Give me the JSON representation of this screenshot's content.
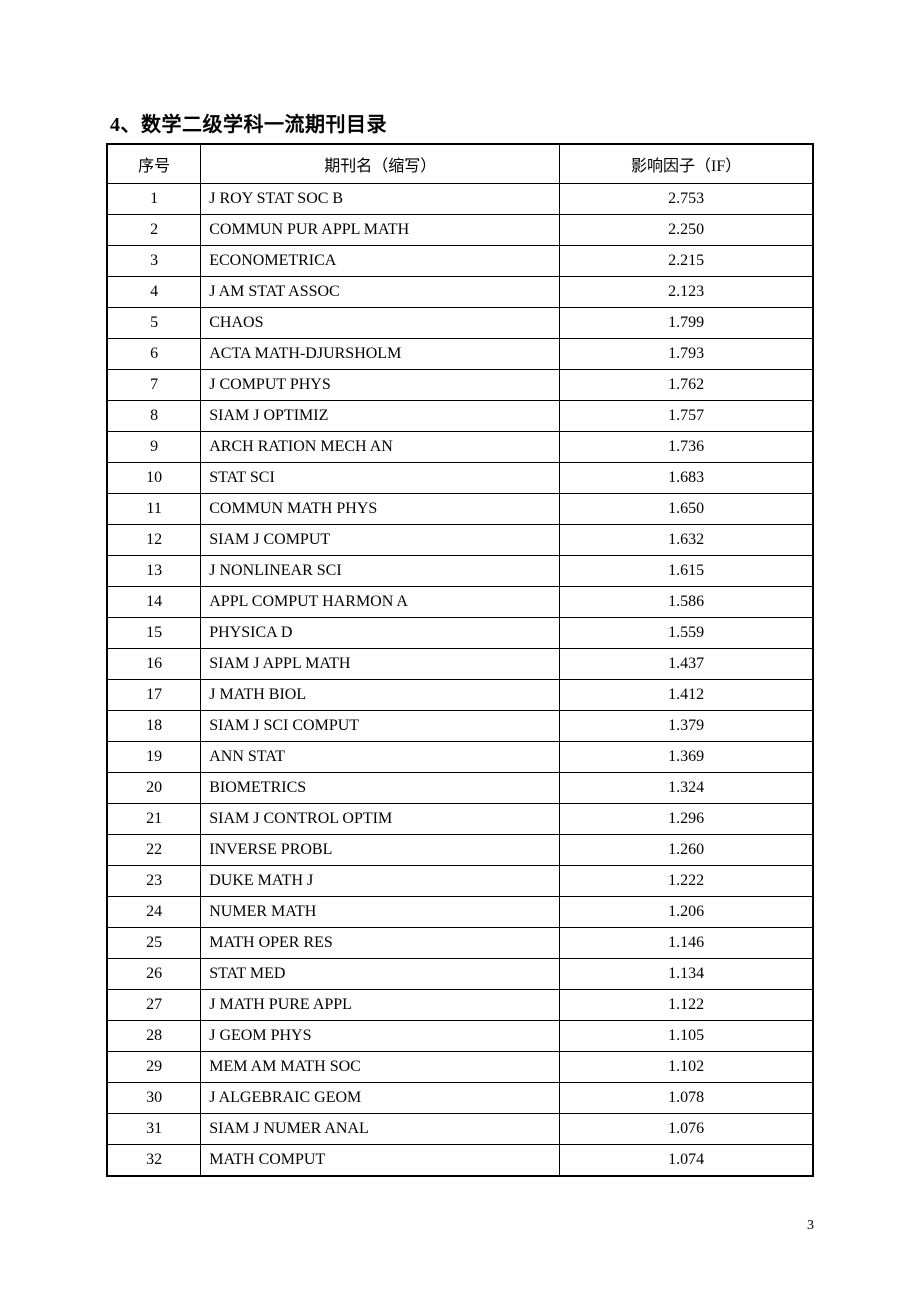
{
  "document": {
    "title": "4、数学二级学科一流期刊目录",
    "page_number": "3",
    "background_color": "#ffffff",
    "text_color": "#000000",
    "border_color": "#000000"
  },
  "table": {
    "columns": {
      "index": "序号",
      "name": "期刊名（缩写）",
      "impact_factor": "影响因子（IF）"
    },
    "column_widths": {
      "index": 94,
      "name": 360,
      "impact_factor": 254
    },
    "rows": [
      {
        "index": "1",
        "name": "J ROY STAT SOC B",
        "if": "2.753"
      },
      {
        "index": "2",
        "name": "COMMUN PUR APPL MATH",
        "if": "2.250"
      },
      {
        "index": "3",
        "name": "ECONOMETRICA",
        "if": "2.215"
      },
      {
        "index": "4",
        "name": "J AM STAT ASSOC",
        "if": "2.123"
      },
      {
        "index": "5",
        "name": "CHAOS",
        "if": "1.799"
      },
      {
        "index": "6",
        "name": "ACTA MATH-DJURSHOLM",
        "if": "1.793"
      },
      {
        "index": "7",
        "name": "J COMPUT PHYS",
        "if": "1.762"
      },
      {
        "index": "8",
        "name": "SIAM J OPTIMIZ",
        "if": "1.757"
      },
      {
        "index": "9",
        "name": "ARCH RATION MECH AN",
        "if": "1.736"
      },
      {
        "index": "10",
        "name": "STAT SCI",
        "if": "1.683"
      },
      {
        "index": "11",
        "name": "COMMUN MATH PHYS",
        "if": "1.650"
      },
      {
        "index": "12",
        "name": "SIAM J COMPUT",
        "if": "1.632"
      },
      {
        "index": "13",
        "name": "J NONLINEAR SCI",
        "if": "1.615"
      },
      {
        "index": "14",
        "name": "APPL COMPUT HARMON A",
        "if": "1.586"
      },
      {
        "index": "15",
        "name": "PHYSICA D",
        "if": "1.559"
      },
      {
        "index": "16",
        "name": "SIAM J APPL MATH",
        "if": "1.437"
      },
      {
        "index": "17",
        "name": "J MATH BIOL",
        "if": "1.412"
      },
      {
        "index": "18",
        "name": "SIAM J SCI COMPUT",
        "if": "1.379"
      },
      {
        "index": "19",
        "name": "ANN STAT",
        "if": "1.369"
      },
      {
        "index": "20",
        "name": "BIOMETRICS",
        "if": "1.324"
      },
      {
        "index": "21",
        "name": "SIAM J CONTROL OPTIM",
        "if": "1.296"
      },
      {
        "index": "22",
        "name": "INVERSE PROBL",
        "if": "1.260"
      },
      {
        "index": "23",
        "name": "DUKE MATH J",
        "if": "1.222"
      },
      {
        "index": "24",
        "name": "NUMER MATH",
        "if": "1.206"
      },
      {
        "index": "25",
        "name": "MATH OPER RES",
        "if": "1.146"
      },
      {
        "index": "26",
        "name": "STAT MED",
        "if": "1.134"
      },
      {
        "index": "27",
        "name": "J MATH PURE APPL",
        "if": "1.122"
      },
      {
        "index": "28",
        "name": "J GEOM PHYS",
        "if": "1.105"
      },
      {
        "index": "29",
        "name": "MEM AM MATH SOC",
        "if": "1.102"
      },
      {
        "index": "30",
        "name": "J ALGEBRAIC GEOM",
        "if": "1.078"
      },
      {
        "index": "31",
        "name": "SIAM J NUMER ANAL",
        "if": "1.076"
      },
      {
        "index": "32",
        "name": "MATH COMPUT",
        "if": "1.074"
      }
    ]
  }
}
